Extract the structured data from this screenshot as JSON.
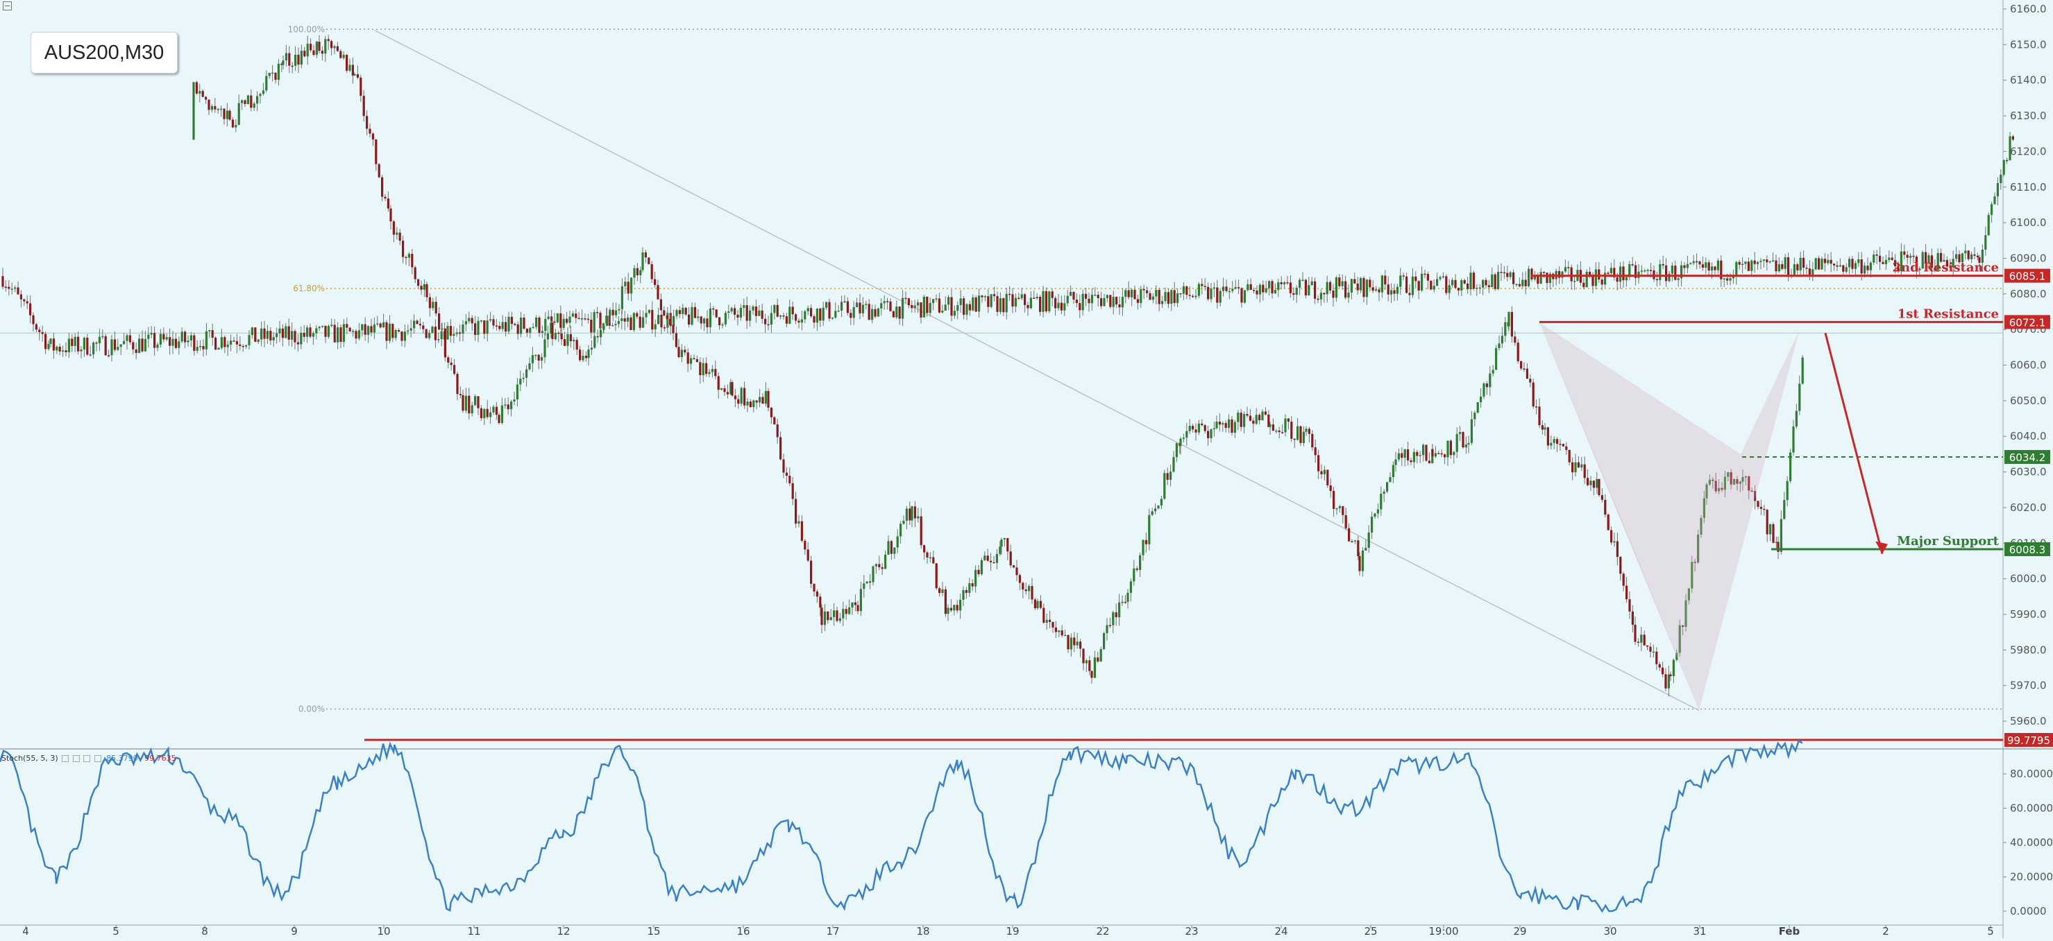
{
  "chart_data": {
    "type": "candlestick",
    "title": "AUS200,M30",
    "symbol": "AUS200",
    "timeframe": "M30",
    "price_axis": {
      "range": [
        5952,
        6162
      ],
      "ticks": [
        "6160.0",
        "6150.0",
        "6140.0",
        "6130.0",
        "6120.0",
        "6110.0",
        "6100.0",
        "6090.0",
        "6080.0",
        "6070.0",
        "6060.0",
        "6050.0",
        "6040.0",
        "6030.0",
        "6020.0",
        "6010.0",
        "6000.0",
        "5990.0",
        "5980.0",
        "5970.0",
        "5960.0"
      ]
    },
    "time_axis": {
      "labels": [
        "4",
        "5",
        "8",
        "9",
        "10",
        "11",
        "12",
        "15",
        "16",
        "17",
        "18",
        "19",
        "22",
        "23",
        "24",
        "25",
        "19:00",
        "29",
        "30",
        "31",
        "Feb",
        "2",
        "5"
      ]
    },
    "price_path": [
      [
        "4",
        6085
      ],
      [
        "4",
        6065
      ],
      [
        "5",
        6090
      ],
      [
        "5",
        6128
      ],
      [
        "8",
        6138
      ],
      [
        "8",
        6128
      ],
      [
        "9",
        6145
      ],
      [
        "9",
        6150
      ],
      [
        "10",
        6143
      ],
      [
        "10",
        6100
      ],
      [
        "10",
        6080
      ],
      [
        "11",
        6050
      ],
      [
        "11",
        6045
      ],
      [
        "12",
        6070
      ],
      [
        "12",
        6062
      ],
      [
        "15",
        6090
      ],
      [
        "15",
        6065
      ],
      [
        "16",
        6052
      ],
      [
        "16",
        6050
      ],
      [
        "17",
        5988
      ],
      [
        "17",
        5993
      ],
      [
        "18",
        6020
      ],
      [
        "18",
        5990
      ],
      [
        "19",
        6010
      ],
      [
        "19",
        5992
      ],
      [
        "22",
        5975
      ],
      [
        "22",
        5998
      ],
      [
        "23",
        6040
      ],
      [
        "23",
        6043
      ],
      [
        "24",
        6045
      ],
      [
        "24",
        6040
      ],
      [
        "25",
        6005
      ],
      [
        "25",
        6035
      ],
      [
        "19:00",
        6035
      ],
      [
        "19:00",
        6040
      ],
      [
        "29",
        6072
      ],
      [
        "29",
        6040
      ],
      [
        "30",
        6025
      ],
      [
        "30",
        5985
      ],
      [
        "31",
        5970
      ],
      [
        "31",
        6025
      ],
      [
        "31",
        6030
      ],
      [
        "Feb",
        6008
      ],
      [
        "Feb",
        6067
      ]
    ],
    "fibonacci": [
      {
        "label": "100.00%",
        "price": 6154.3
      },
      {
        "label": "61.80%",
        "price": 6081.5
      },
      {
        "label": "0.00%",
        "price": 5963.4
      }
    ],
    "levels": [
      {
        "label": "2nd Resistance",
        "price": 6085.1,
        "price_label": "6085.1",
        "color": "#c62828",
        "style": "solid"
      },
      {
        "label": "1st Resistance",
        "price": 6072.1,
        "price_label": "6072.1",
        "color": "#c62828",
        "style": "solid"
      },
      {
        "label": "",
        "price": 6034.2,
        "price_label": "6034.2",
        "color": "#2e7d32",
        "style": "dashed"
      },
      {
        "label": "Major Support",
        "price": 6008.3,
        "price_label": "6008.3",
        "color": "#2e7d32",
        "style": "solid"
      }
    ],
    "stochastic": {
      "title": "Stoch(55, 5, 3)",
      "main_value": "85.3790",
      "signal_value": "99.7635",
      "level_label": "99.7795",
      "level": 99.78,
      "range": [
        -2,
        104
      ],
      "ticks": [
        "80.0000",
        "60.0000",
        "40.0000",
        "20.0000",
        "0.0000"
      ],
      "path": [
        [
          0,
          92
        ],
        [
          1,
          20
        ],
        [
          2,
          88
        ],
        [
          3,
          90
        ],
        [
          4,
          55
        ],
        [
          5,
          10
        ],
        [
          6,
          75
        ],
        [
          7,
          95
        ],
        [
          8,
          5
        ],
        [
          9,
          15
        ],
        [
          10,
          45
        ],
        [
          11,
          93
        ],
        [
          12,
          10
        ],
        [
          13,
          15
        ],
        [
          14,
          50
        ],
        [
          15,
          5
        ],
        [
          16,
          30
        ],
        [
          17,
          85
        ],
        [
          18,
          5
        ],
        [
          19,
          92
        ],
        [
          20,
          88
        ],
        [
          21,
          85
        ],
        [
          22,
          30
        ],
        [
          23,
          80
        ],
        [
          24,
          60
        ],
        [
          25,
          85
        ],
        [
          26,
          88
        ],
        [
          27,
          10
        ],
        [
          28,
          5
        ],
        [
          29,
          3
        ],
        [
          30,
          75
        ],
        [
          31,
          92
        ],
        [
          32,
          95
        ]
      ]
    }
  },
  "colors": {
    "background": "#e9f7fb",
    "bull": "#2e7d32",
    "bear": "#8b1a1a",
    "resistance": "#c62828",
    "support": "#2e7d32",
    "stoch_line": "#3a80c7",
    "fib": "#c9a02a"
  }
}
